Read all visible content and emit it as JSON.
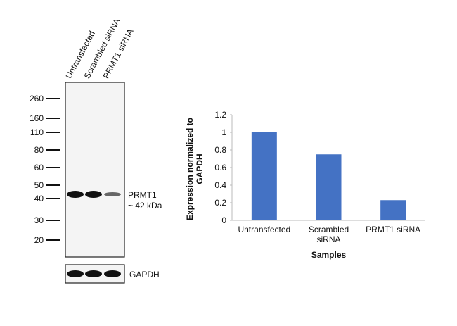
{
  "blot": {
    "lanes": [
      "Untransfected",
      "Scrambled siRNA",
      "PRMT1 siRNA"
    ],
    "markers": [
      "260",
      "160",
      "110",
      "80",
      "60",
      "50",
      "40",
      "30",
      "20"
    ],
    "band_label": "PRMT1",
    "band_size": "~ 42 kDa",
    "loading_label": "GAPDH"
  },
  "chart_data": {
    "type": "bar",
    "ylabel": "Expression  normalized to\nGAPDH",
    "xlabel": "Samples",
    "categories": [
      "Untransfected",
      "Scrambled\nsiRNA",
      "PRMT1 siRNA"
    ],
    "values": [
      1,
      0.75,
      0.23
    ],
    "color": "#4472c4",
    "ylim": [
      0,
      1.2
    ],
    "yticks": [
      0,
      0.2,
      0.4,
      0.6,
      0.8,
      1,
      1.2
    ]
  }
}
